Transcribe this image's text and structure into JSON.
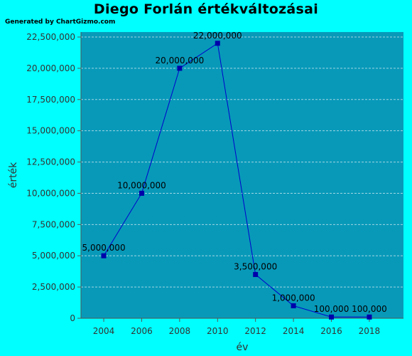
{
  "header": {
    "title": "Diego Forlán értékváltozásai",
    "generated_by": "Generated by ChartGizmo.com"
  },
  "colors": {
    "background": "#00ffff",
    "plot_area": "#0899b9",
    "line": "#0000cc",
    "marker": "#0000aa",
    "grid": "#9fd6e2"
  },
  "chart_data": {
    "type": "line",
    "title": "Diego Forlán értékváltozásai",
    "xlabel": "év",
    "ylabel": "érték",
    "xlim": [
      2002.8,
      2019.8
    ],
    "ylim": [
      0,
      22900000
    ],
    "x_ticks": [
      2004,
      2006,
      2008,
      2010,
      2012,
      2014,
      2016,
      2018
    ],
    "y_ticks": [
      0,
      2500000,
      5000000,
      7500000,
      10000000,
      12500000,
      15000000,
      17500000,
      20000000,
      22500000
    ],
    "y_tick_labels": [
      "0",
      "2,500,000",
      "5,000,000",
      "7,500,000",
      "10,000,000",
      "12,500,000",
      "15,000,000",
      "17,500,000",
      "20,000,000",
      "22,500,000"
    ],
    "grid": true,
    "series": [
      {
        "x": [
          2004,
          2006,
          2008,
          2010,
          2012,
          2014,
          2016,
          2018
        ],
        "values": [
          5000000,
          10000000,
          20000000,
          22000000,
          3500000,
          1000000,
          100000,
          100000
        ],
        "labels": [
          "5,000,000",
          "10,000,000",
          "20,000,000",
          "22,000,000",
          "3,500,000",
          "1,000,000",
          "100,000",
          "100,000"
        ]
      }
    ]
  }
}
